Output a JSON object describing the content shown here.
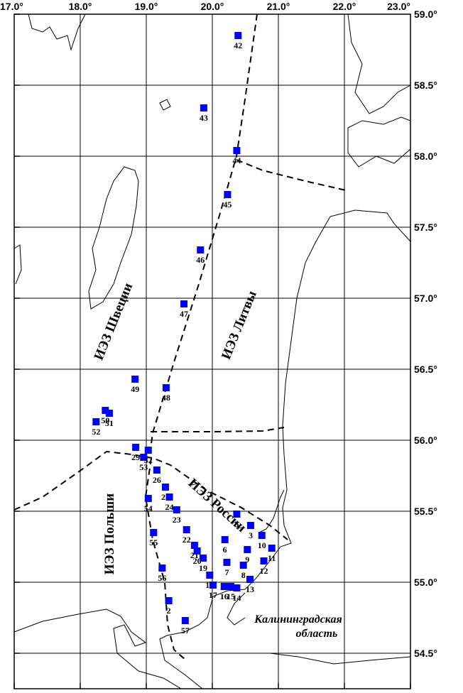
{
  "map": {
    "lon_ticks": [
      {
        "value": 17,
        "label": "17.0°"
      },
      {
        "value": 18,
        "label": "18.0°"
      },
      {
        "value": 19,
        "label": "19.0°"
      },
      {
        "value": 20,
        "label": "20.0°"
      },
      {
        "value": 21,
        "label": "21.0°"
      },
      {
        "value": 22,
        "label": "22.0°"
      },
      {
        "value": 23,
        "label": "23.0°"
      }
    ],
    "lat_ticks": [
      {
        "value": 59,
        "label": "59.0°"
      },
      {
        "value": 58.5,
        "label": "58.5°"
      },
      {
        "value": 58,
        "label": "58.0°"
      },
      {
        "value": 57.5,
        "label": "57.5°"
      },
      {
        "value": 57,
        "label": "57.0°"
      },
      {
        "value": 56.5,
        "label": "56.5°"
      },
      {
        "value": 56,
        "label": "56.0°"
      },
      {
        "value": 55.5,
        "label": "55.5°"
      },
      {
        "value": 55,
        "label": "55.0°"
      },
      {
        "value": 54.5,
        "label": "54.5°"
      }
    ],
    "stations": [
      {
        "label": "42",
        "lon": 20.39,
        "lat": 58.85
      },
      {
        "label": "43",
        "lon": 19.87,
        "lat": 58.34
      },
      {
        "label": "44",
        "lon": 20.37,
        "lat": 58.04
      },
      {
        "label": "45",
        "lon": 20.23,
        "lat": 57.73
      },
      {
        "label": "46",
        "lon": 19.82,
        "lat": 57.34
      },
      {
        "label": "47",
        "lon": 19.57,
        "lat": 56.96
      },
      {
        "label": "49",
        "lon": 18.83,
        "lat": 56.43
      },
      {
        "label": "48",
        "lon": 19.3,
        "lat": 56.37
      },
      {
        "label": "50",
        "lon": 18.38,
        "lat": 56.21
      },
      {
        "label": "51",
        "lon": 18.44,
        "lat": 56.19
      },
      {
        "label": "52",
        "lon": 18.24,
        "lat": 56.13
      },
      {
        "label": "29",
        "lon": 18.84,
        "lat": 55.95
      },
      {
        "label": "53",
        "lon": 18.96,
        "lat": 55.88
      },
      {
        "label": "32",
        "lon": 19.03,
        "lat": 55.93
      },
      {
        "label": "26",
        "lon": 19.16,
        "lat": 55.79
      },
      {
        "label": "25",
        "lon": 19.29,
        "lat": 55.67
      },
      {
        "label": "24",
        "lon": 19.35,
        "lat": 55.6
      },
      {
        "label": "54",
        "lon": 19.03,
        "lat": 55.59
      },
      {
        "label": "23",
        "lon": 19.46,
        "lat": 55.51
      },
      {
        "label": "5",
        "lon": 20.37,
        "lat": 55.48
      },
      {
        "label": "3",
        "lon": 20.58,
        "lat": 55.4
      },
      {
        "label": "10",
        "lon": 20.75,
        "lat": 55.33
      },
      {
        "label": "55",
        "lon": 19.11,
        "lat": 55.35
      },
      {
        "label": "22",
        "lon": 19.61,
        "lat": 55.37
      },
      {
        "label": "6",
        "lon": 20.19,
        "lat": 55.3
      },
      {
        "label": "11",
        "lon": 20.9,
        "lat": 55.24
      },
      {
        "label": "9",
        "lon": 20.53,
        "lat": 55.23
      },
      {
        "label": "21",
        "lon": 19.73,
        "lat": 55.26
      },
      {
        "label": "20",
        "lon": 19.77,
        "lat": 55.22
      },
      {
        "label": "19",
        "lon": 19.86,
        "lat": 55.17
      },
      {
        "label": "12",
        "lon": 20.78,
        "lat": 55.15
      },
      {
        "label": "7",
        "lon": 20.22,
        "lat": 55.14
      },
      {
        "label": "8",
        "lon": 20.47,
        "lat": 55.12
      },
      {
        "label": "56",
        "lon": 19.24,
        "lat": 55.1
      },
      {
        "label": "18",
        "lon": 19.96,
        "lat": 55.05
      },
      {
        "label": "13",
        "lon": 20.57,
        "lat": 55.02
      },
      {
        "label": "17",
        "lon": 20.01,
        "lat": 54.98
      },
      {
        "label": "16",
        "lon": 20.18,
        "lat": 54.97
      },
      {
        "label": "15",
        "lon": 20.28,
        "lat": 54.97
      },
      {
        "label": "14",
        "lon": 20.37,
        "lat": 54.96
      },
      {
        "label": "2",
        "lon": 19.34,
        "lat": 54.87
      },
      {
        "label": "57",
        "lon": 19.59,
        "lat": 54.73
      }
    ],
    "regions": {
      "sweden": "ИЭЗ Швеции",
      "lithuania": "ИЭЗ Литвы",
      "poland": "ИЭЗ Польши",
      "russia": "ИЭЗ России",
      "kaliningrad_1": "Калининградская",
      "kaliningrad_2": "область"
    }
  }
}
